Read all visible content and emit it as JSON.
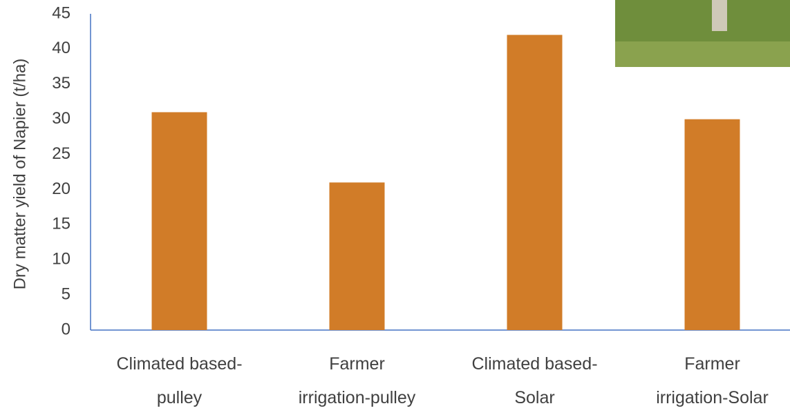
{
  "chart_data": {
    "type": "bar",
    "y_label": "Dry matter yield of Napier (t/ha)",
    "categories": [
      "Climated based-\npulley",
      "Farmer\nirrigation-pulley",
      "Climated based-\nSolar",
      "Farmer\nirrigation-Solar"
    ],
    "values": [
      31,
      21,
      42,
      30
    ],
    "color": "#d17c28",
    "ylim": [
      0,
      45
    ],
    "yticks": [
      0,
      5,
      10,
      15,
      20,
      25,
      30,
      35,
      40,
      45
    ],
    "grid": false
  }
}
